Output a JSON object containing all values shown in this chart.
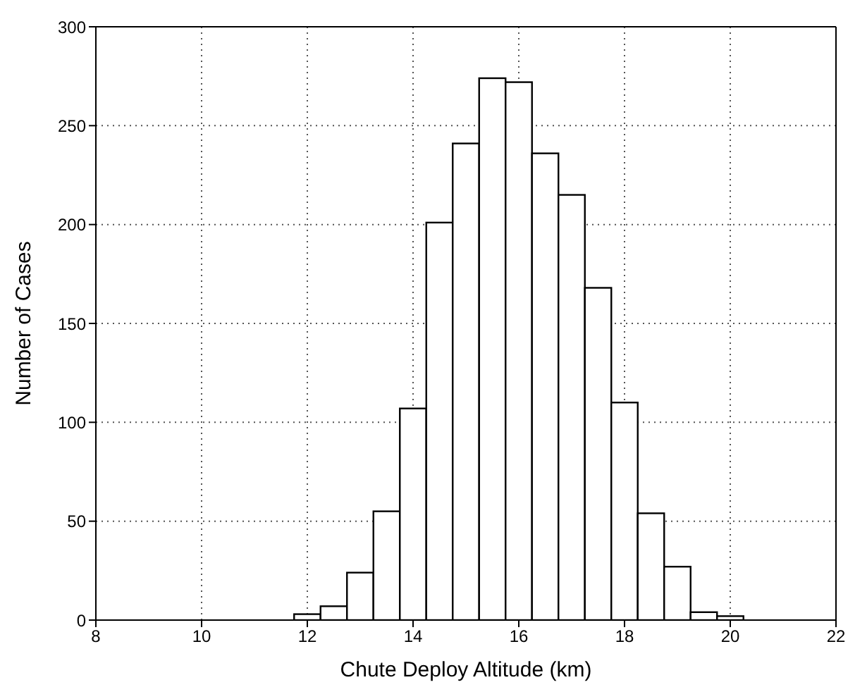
{
  "chart_data": {
    "type": "histogram",
    "xlabel": "Chute Deploy Altitude (km)",
    "ylabel": "Number of Cases",
    "bins": [
      11.75,
      12.25,
      12.75,
      13.25,
      13.75,
      14.25,
      14.75,
      15.25,
      15.75,
      16.25,
      16.75,
      17.25,
      17.75,
      18.25,
      18.75,
      19.25,
      19.75,
      20.25
    ],
    "values": [
      3,
      7,
      24,
      55,
      107,
      201,
      241,
      274,
      272,
      236,
      215,
      168,
      110,
      54,
      27,
      4,
      2
    ],
    "color": "#ffffff",
    "xlim": [
      8,
      22
    ],
    "xticks": [
      8,
      10,
      12,
      14,
      16,
      18,
      20,
      22
    ],
    "ylim": [
      0,
      300
    ],
    "yticks": [
      0,
      50,
      100,
      150,
      200,
      250,
      300
    ],
    "grid": true
  }
}
